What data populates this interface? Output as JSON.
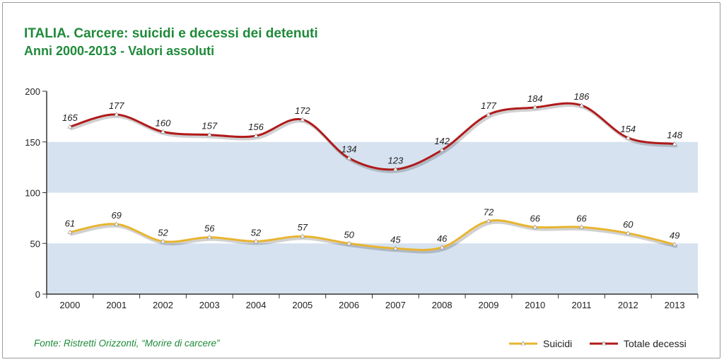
{
  "header": {
    "title": "ITALIA. Carcere: suicidi e decessi dei detenuti",
    "subtitle": "Anni 2000-2013 - Valori assoluti"
  },
  "footer": {
    "source": "Fonte: Ristretti Orizzonti, “Morire di carcere”"
  },
  "colors": {
    "title_green": "#1f8a3a",
    "band": "#d6e2ef",
    "totale": "#b01a1a",
    "suicidi": "#e8b531"
  },
  "chart_data": {
    "type": "line",
    "title": "ITALIA. Carcere: suicidi e decessi dei detenuti",
    "subtitle": "Anni 2000-2013 - Valori assoluti",
    "xlabel": "",
    "ylabel": "",
    "x": [
      "2000",
      "2001",
      "2002",
      "2003",
      "2004",
      "2005",
      "2006",
      "2007",
      "2008",
      "2009",
      "2010",
      "2011",
      "2012",
      "2013"
    ],
    "ylim": [
      0,
      200
    ],
    "yticks": [
      0,
      50,
      100,
      150,
      200
    ],
    "bands": [
      [
        0,
        50
      ],
      [
        100,
        150
      ]
    ],
    "series": [
      {
        "name": "Suicidi",
        "color": "#e8b531",
        "values": [
          61,
          69,
          52,
          56,
          52,
          57,
          50,
          45,
          46,
          72,
          66,
          66,
          60,
          49
        ]
      },
      {
        "name": "Totale decessi",
        "color": "#b01a1a",
        "values": [
          165,
          177,
          160,
          157,
          156,
          172,
          134,
          123,
          142,
          177,
          184,
          186,
          154,
          148
        ]
      }
    ],
    "legend": "bottom-right",
    "grid": false
  }
}
